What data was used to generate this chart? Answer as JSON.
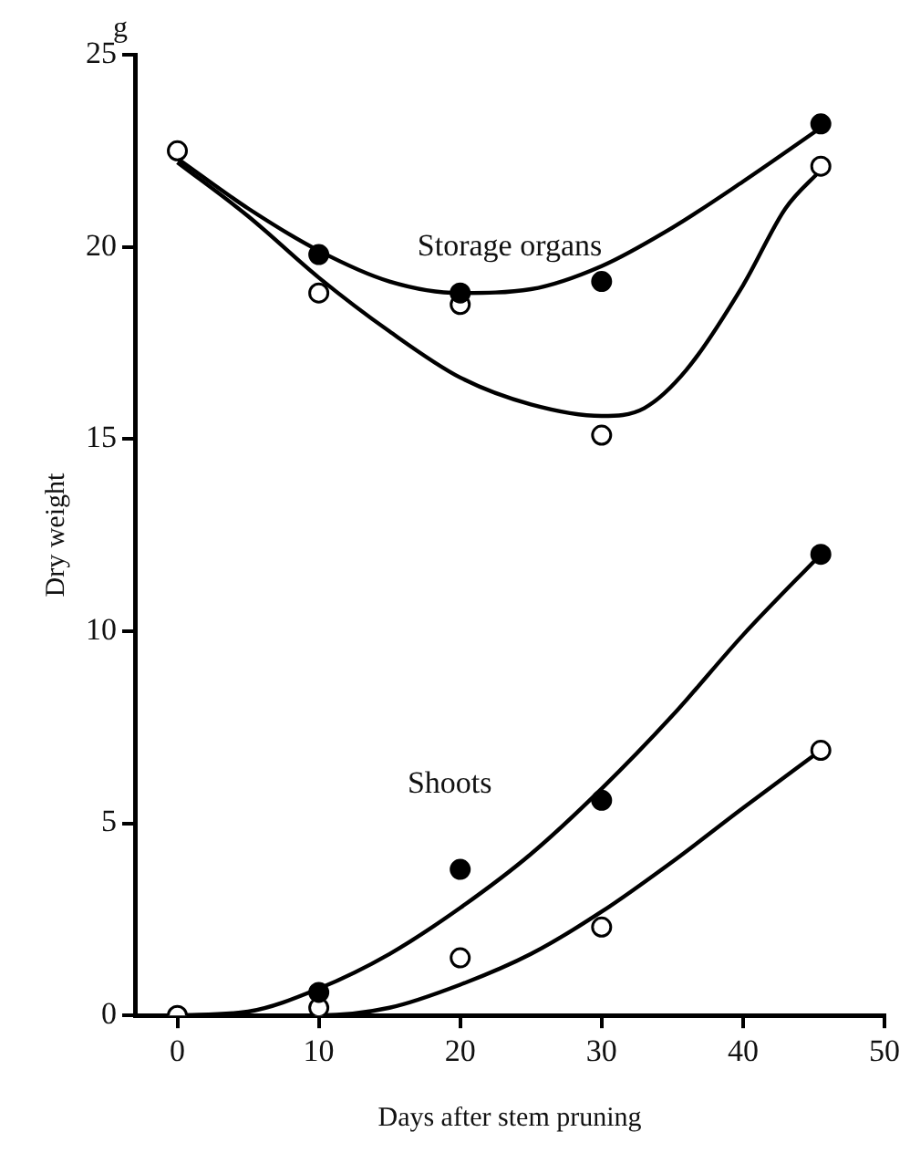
{
  "chart_data": {
    "type": "scatter",
    "xlabel": "Days after stem pruning",
    "ylabel": "Dry weight",
    "xlim": [
      -3,
      50
    ],
    "xticks": [
      0,
      10,
      20,
      30,
      40,
      50
    ],
    "ylim": [
      0,
      25
    ],
    "yticks": [
      0,
      5,
      10,
      15,
      20,
      25
    ],
    "grid": false,
    "legend": false,
    "line_style": "solid",
    "annotations": [
      "g",
      "Storage organs",
      "Shoots"
    ],
    "series": [
      {
        "marker": "circle",
        "color": "#000000",
        "x": [
          10,
          20,
          30,
          45.5
        ],
        "values": [
          19.8,
          18.8,
          19.1,
          23.2
        ]
      },
      {
        "marker": "circle",
        "color": "#ffffff",
        "x": [
          0,
          10,
          20,
          30,
          45.5
        ],
        "values": [
          22.5,
          18.8,
          18.5,
          15.1,
          22.1
        ]
      },
      {
        "marker": "circle",
        "color": "#000000",
        "x": [
          10,
          20,
          30,
          45.5
        ],
        "values": [
          0.6,
          3.8,
          5.6,
          12
        ]
      },
      {
        "marker": "circle",
        "color": "#ffffff",
        "x": [
          0,
          10,
          20,
          30,
          45.5
        ],
        "values": [
          0,
          0.2,
          1.5,
          2.3,
          6.9
        ]
      },
      {
        "type": "line",
        "color": "#000000",
        "x": [
          0,
          5,
          10,
          15,
          20,
          25,
          30,
          35,
          40,
          45.5
        ],
        "values": [
          22.3,
          21,
          19.9,
          19.1,
          18.8,
          18.9,
          19.5,
          20.5,
          21.7,
          23.1
        ]
      },
      {
        "type": "line",
        "color": "#000000",
        "x": [
          0,
          5,
          10,
          15,
          20,
          25,
          30,
          33,
          36,
          40,
          43,
          45.5
        ],
        "values": [
          22.2,
          20.8,
          19.2,
          17.8,
          16.6,
          15.9,
          15.6,
          15.8,
          16.8,
          19,
          21,
          22
        ]
      },
      {
        "type": "line",
        "color": "#000000",
        "x": [
          0,
          5,
          10,
          15,
          20,
          25,
          30,
          35,
          40,
          45.5
        ],
        "values": [
          0,
          0.1,
          0.7,
          1.6,
          2.8,
          4.2,
          5.9,
          7.8,
          9.9,
          12
        ]
      },
      {
        "type": "line",
        "color": "#000000",
        "x": [
          0,
          10,
          15,
          20,
          25,
          30,
          35,
          40,
          45.5
        ],
        "values": [
          0,
          0,
          0.2,
          0.8,
          1.6,
          2.7,
          4,
          5.4,
          6.9
        ]
      }
    ]
  }
}
